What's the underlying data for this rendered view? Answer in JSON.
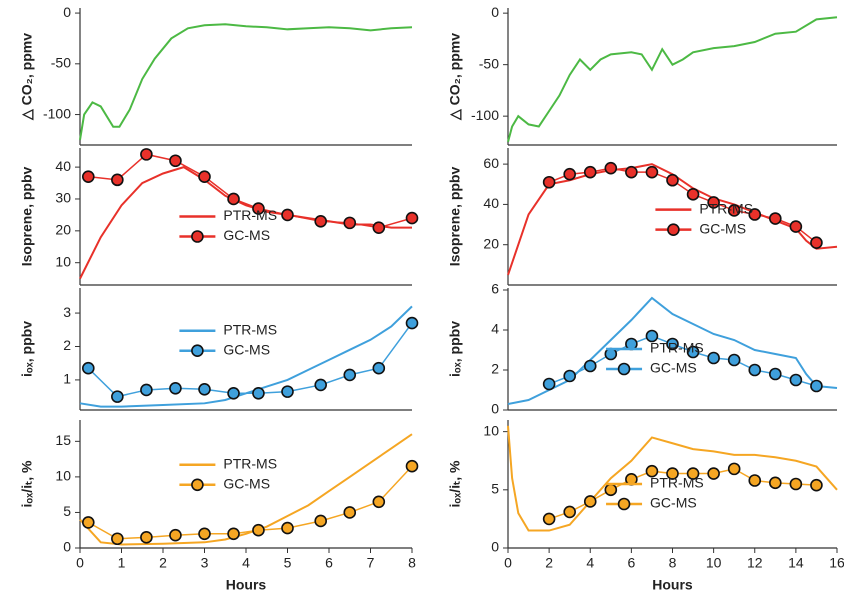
{
  "chart_data": [
    {
      "type": "line",
      "ylabel": "△ CO₂, ppmv",
      "xlim": [
        0,
        8
      ],
      "ylim": [
        -130,
        5
      ],
      "yticks": [
        0,
        -50,
        -100
      ],
      "series": [
        {
          "color": "#4cb944",
          "x": [
            0,
            0.1,
            0.3,
            0.5,
            0.8,
            0.95,
            1.2,
            1.5,
            1.8,
            2.2,
            2.6,
            3,
            3.5,
            4,
            4.5,
            5,
            5.5,
            6,
            6.5,
            7,
            7.5,
            8
          ],
          "values": [
            -125,
            -100,
            -88,
            -92,
            -112,
            -112,
            -95,
            -65,
            -45,
            -25,
            -15,
            -12,
            -11,
            -13,
            -14,
            -16,
            -15,
            -14,
            -15,
            -17,
            -15,
            -14
          ]
        }
      ]
    },
    {
      "type": "line",
      "ylabel": "△ CO₂, ppmv",
      "xlim": [
        0,
        16
      ],
      "ylim": [
        -128,
        5
      ],
      "yticks": [
        0,
        -50,
        -100
      ],
      "series": [
        {
          "color": "#4cb944",
          "x": [
            0,
            0.2,
            0.5,
            1,
            1.5,
            2,
            2.5,
            3,
            3.5,
            4,
            4.5,
            5,
            6,
            6.5,
            7,
            7.5,
            8,
            8.5,
            9,
            10,
            11,
            12,
            13,
            14,
            15,
            16
          ],
          "values": [
            -125,
            -110,
            -100,
            -108,
            -110,
            -95,
            -80,
            -60,
            -45,
            -55,
            -45,
            -40,
            -38,
            -40,
            -55,
            -35,
            -50,
            -45,
            -38,
            -34,
            -32,
            -28,
            -20,
            -18,
            -6,
            -4
          ]
        }
      ]
    },
    {
      "type": "line",
      "ylabel": "Isoprene, ppbv",
      "xlim": [
        0,
        8
      ],
      "ylim": [
        3,
        46
      ],
      "yticks": [
        10,
        20,
        30,
        40
      ],
      "legend": "lower center",
      "series": [
        {
          "name": "PTR-MS",
          "color": "#e8312a",
          "x": [
            0,
            0.5,
            1,
            1.5,
            2,
            2.5,
            3,
            3.5,
            4,
            4.5,
            5,
            5.5,
            6,
            6.5,
            7,
            7.5,
            8
          ],
          "values": [
            5,
            18,
            28,
            35,
            38,
            40,
            36,
            31,
            28,
            26,
            25,
            24,
            23,
            22,
            22,
            21,
            21
          ]
        },
        {
          "name": "GC-MS",
          "color": "#e8312a",
          "marker": true,
          "x": [
            0.2,
            0.9,
            1.6,
            2.3,
            3,
            3.7,
            4.3,
            5,
            5.8,
            6.5,
            7.2,
            8
          ],
          "values": [
            37,
            36,
            44,
            42,
            37,
            30,
            27,
            25,
            23,
            22.5,
            21,
            24
          ]
        }
      ]
    },
    {
      "type": "line",
      "ylabel": "Isoprene, ppbv",
      "xlim": [
        0,
        16
      ],
      "ylim": [
        0,
        68
      ],
      "yticks": [
        20,
        40,
        60
      ],
      "legend": "center right",
      "series": [
        {
          "name": "PTR-MS",
          "color": "#e8312a",
          "x": [
            0,
            1,
            2,
            3,
            4,
            5,
            6,
            7,
            8,
            9,
            10,
            11,
            12,
            13,
            14,
            14.5,
            15,
            16
          ],
          "values": [
            5,
            35,
            50,
            52,
            55,
            57,
            58,
            60,
            55,
            48,
            43,
            40,
            36,
            32,
            28,
            22,
            18,
            19
          ]
        },
        {
          "name": "GC-MS",
          "color": "#e8312a",
          "marker": true,
          "x": [
            2,
            3,
            4,
            5,
            6,
            7,
            8,
            9,
            10,
            11,
            12,
            13,
            14,
            15
          ],
          "values": [
            51,
            55,
            56,
            58,
            56,
            56,
            52,
            45,
            41,
            37,
            35,
            33,
            29,
            21
          ]
        }
      ]
    },
    {
      "type": "line",
      "ylabel": "iₒₓ, ppbv",
      "xlim": [
        0,
        8
      ],
      "ylim": [
        0.1,
        3.75
      ],
      "yticks": [
        1,
        2,
        3
      ],
      "legend": "center",
      "series": [
        {
          "name": "PTR-MS",
          "color": "#3fa0dc",
          "x": [
            0,
            0.5,
            1,
            2,
            3,
            3.5,
            4,
            4.5,
            5,
            5.5,
            6,
            6.5,
            7,
            7.5,
            8
          ],
          "values": [
            0.3,
            0.2,
            0.2,
            0.25,
            0.3,
            0.4,
            0.6,
            0.8,
            1.0,
            1.3,
            1.6,
            1.9,
            2.2,
            2.6,
            3.2
          ]
        },
        {
          "name": "GC-MS",
          "color": "#3fa0dc",
          "marker": true,
          "x": [
            0.2,
            0.9,
            1.6,
            2.3,
            3,
            3.7,
            4.3,
            5,
            5.8,
            6.5,
            7.2,
            8
          ],
          "values": [
            1.35,
            0.5,
            0.7,
            0.75,
            0.72,
            0.6,
            0.6,
            0.65,
            0.85,
            1.15,
            1.35,
            2.7
          ]
        }
      ]
    },
    {
      "type": "line",
      "ylabel": "iₒₓ, ppbv",
      "xlim": [
        0,
        16
      ],
      "ylim": [
        0,
        6.1
      ],
      "yticks": [
        0,
        2,
        4,
        6
      ],
      "legend": "lower center",
      "series": [
        {
          "name": "PTR-MS",
          "color": "#3fa0dc",
          "x": [
            0,
            1,
            2,
            3,
            4,
            5,
            6,
            7,
            8,
            9,
            10,
            11,
            12,
            13,
            14,
            14.5,
            15,
            16
          ],
          "values": [
            0.3,
            0.5,
            1.0,
            1.5,
            2.5,
            3.5,
            4.5,
            5.6,
            4.8,
            4.3,
            3.8,
            3.5,
            3.0,
            2.8,
            2.6,
            1.8,
            1.2,
            1.1
          ]
        },
        {
          "name": "GC-MS",
          "color": "#3fa0dc",
          "marker": true,
          "x": [
            2,
            3,
            4,
            5,
            6,
            7,
            8,
            9,
            10,
            11,
            12,
            13,
            14,
            15
          ],
          "values": [
            1.3,
            1.7,
            2.2,
            2.8,
            3.3,
            3.7,
            3.3,
            2.9,
            2.6,
            2.5,
            2.0,
            1.8,
            1.5,
            1.2
          ]
        }
      ]
    },
    {
      "type": "line",
      "ylabel": "iₒₓ/iₜ, %",
      "xlabel": "Hours",
      "xlim": [
        0,
        8
      ],
      "ylim": [
        0,
        18
      ],
      "yticks": [
        0,
        5,
        10,
        15
      ],
      "xticks": [
        0,
        1,
        2,
        3,
        4,
        5,
        6,
        7,
        8
      ],
      "legend": "center",
      "series": [
        {
          "name": "PTR-MS",
          "color": "#f5a623",
          "x": [
            0,
            0.5,
            1,
            2,
            3,
            3.5,
            4,
            4.5,
            5,
            5.5,
            6,
            6.5,
            7,
            7.5,
            8
          ],
          "values": [
            4,
            0.8,
            0.5,
            0.6,
            0.8,
            1.2,
            2,
            3,
            4.5,
            6,
            8,
            10,
            12,
            14,
            16
          ]
        },
        {
          "name": "GC-MS",
          "color": "#f5a623",
          "marker": true,
          "x": [
            0.2,
            0.9,
            1.6,
            2.3,
            3,
            3.7,
            4.3,
            5,
            5.8,
            6.5,
            7.2,
            8
          ],
          "values": [
            3.6,
            1.3,
            1.5,
            1.8,
            2.0,
            2.0,
            2.5,
            2.8,
            3.8,
            5,
            6.5,
            11.5
          ]
        }
      ]
    },
    {
      "type": "line",
      "ylabel": "iₒₓ/iₜ, %",
      "xlabel": "Hours",
      "xlim": [
        0,
        16
      ],
      "ylim": [
        0,
        11
      ],
      "yticks": [
        0,
        5,
        10
      ],
      "xticks": [
        0,
        2,
        4,
        6,
        8,
        10,
        12,
        14,
        16
      ],
      "legend": "lower center",
      "series": [
        {
          "name": "PTR-MS",
          "color": "#f5a623",
          "x": [
            0,
            0.2,
            0.5,
            1,
            2,
            3,
            4,
            5,
            6,
            7,
            8,
            9,
            10,
            11,
            12,
            13,
            14,
            15,
            16
          ],
          "values": [
            10.5,
            6,
            3,
            1.5,
            1.5,
            2,
            4,
            6,
            7.5,
            9.5,
            9,
            8.5,
            8.3,
            8,
            8,
            7.8,
            7.5,
            7,
            5
          ]
        },
        {
          "name": "GC-MS",
          "color": "#f5a623",
          "marker": true,
          "x": [
            2,
            3,
            4,
            5,
            6,
            7,
            8,
            9,
            10,
            11,
            12,
            13,
            14,
            15
          ],
          "values": [
            2.5,
            3.1,
            4,
            5,
            5.9,
            6.6,
            6.4,
            6.4,
            6.4,
            6.8,
            5.8,
            5.6,
            5.5,
            5.4
          ]
        }
      ]
    }
  ]
}
